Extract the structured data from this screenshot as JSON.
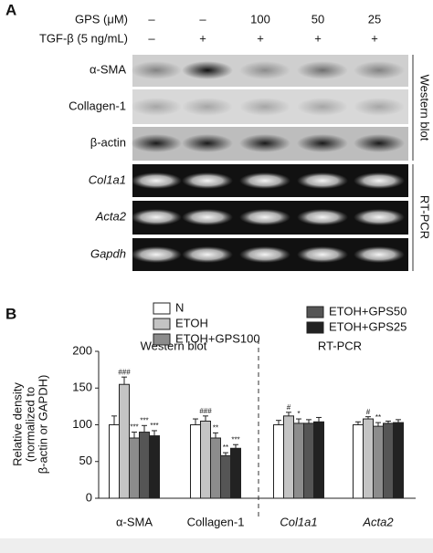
{
  "panel_a": {
    "label": "A",
    "conditions": [
      {
        "name": "GPS (μM)",
        "values": [
          "–",
          "–",
          "100",
          "50",
          "25"
        ]
      },
      {
        "name": "TGF-β (5 ng/mL)",
        "values": [
          "–",
          "+",
          "+",
          "+",
          "+"
        ]
      }
    ],
    "blots": [
      "α-SMA",
      "Collagen-1",
      "β-actin",
      "Col1a1",
      "Acta2",
      "Gapdh"
    ],
    "side_labels": [
      "Western blot",
      "RT-PCR"
    ]
  },
  "panel_b": {
    "label": "B",
    "chart_data": {
      "type": "bar",
      "y_label": [
        "Relative density",
        "(normalized to",
        "β-actin or GAPDH)"
      ],
      "group_titles": [
        "Western blot",
        "RT-PCR"
      ],
      "categories": [
        "α-SMA",
        "Collagen-1",
        "Col1a1",
        "Acta2"
      ],
      "ylim": [
        0,
        200
      ],
      "yticks": [
        0,
        50,
        100,
        150,
        200
      ],
      "series": [
        {
          "name": "N",
          "color": "#ffffff",
          "values": [
            100,
            100,
            100,
            100
          ],
          "errors": [
            12,
            8,
            6,
            4
          ],
          "value_labels": [
            null,
            null,
            null,
            null
          ]
        },
        {
          "name": "ETOH",
          "color": "#c4c4c4",
          "values": [
            155,
            105,
            112,
            108
          ],
          "errors": [
            10,
            7,
            5,
            3
          ],
          "value_labels": [
            "###",
            "###",
            "#",
            "#"
          ]
        },
        {
          "name": "ETOH+GPS100",
          "color": "#8c8c8c",
          "values": [
            82,
            82,
            102,
            98
          ],
          "errors": [
            8,
            7,
            6,
            5
          ],
          "value_labels": [
            "***",
            "**",
            "*",
            "**"
          ]
        },
        {
          "name": "ETOH+GPS50",
          "color": "#555555",
          "values": [
            90,
            58,
            102,
            102
          ],
          "errors": [
            9,
            4,
            5,
            3
          ],
          "value_labels": [
            "***",
            "**",
            null,
            null
          ]
        },
        {
          "name": "ETOH+GPS25",
          "color": "#222222",
          "values": [
            85,
            68,
            104,
            103
          ],
          "errors": [
            7,
            5,
            6,
            4
          ],
          "value_labels": [
            "***",
            "***",
            null,
            null
          ]
        }
      ]
    }
  }
}
